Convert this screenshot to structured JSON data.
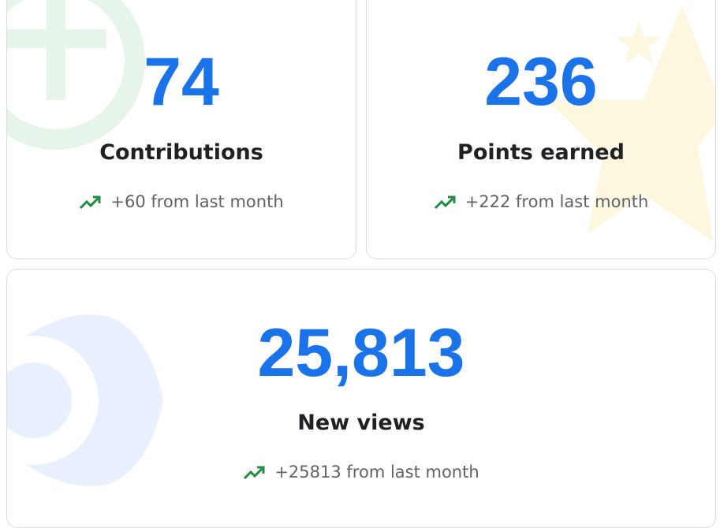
{
  "cards": [
    {
      "value": "74",
      "label": "Contributions",
      "change": "+60 from last month"
    },
    {
      "value": "236",
      "label": "Points earned",
      "change": "+222 from last month"
    },
    {
      "value": "25,813",
      "label": "New views",
      "change": "+25813 from last month"
    }
  ]
}
